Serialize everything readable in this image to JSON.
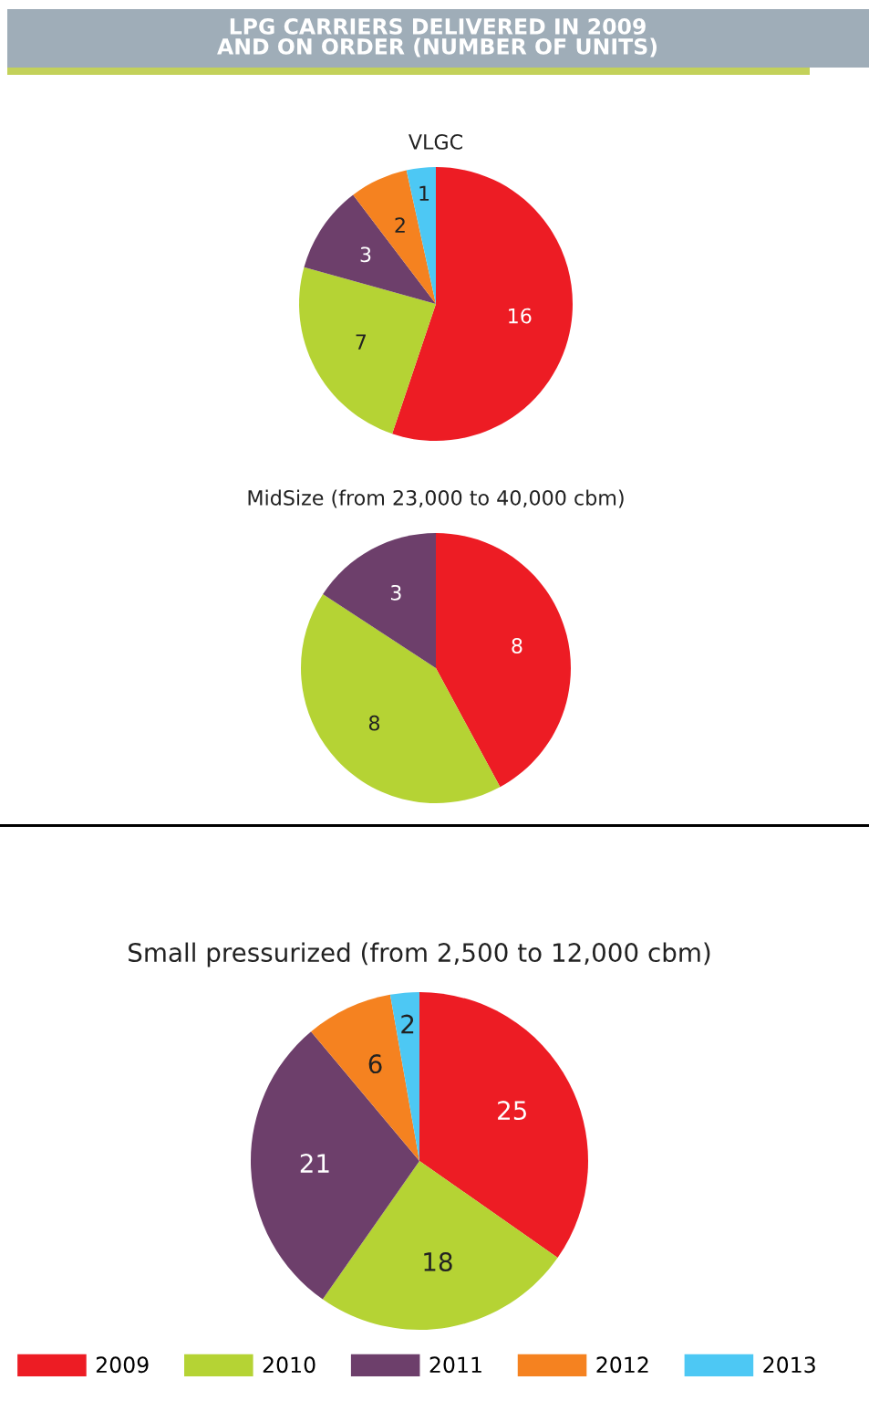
{
  "chart_data": [
    {
      "type": "pie",
      "title": "LPG CARRIERS DELIVERED IN 2009\nAND ON ORDER (NUMBER OF UNITS)",
      "subtitle": "VLGC",
      "categories": [
        "2009",
        "2010",
        "2011",
        "2012",
        "2013"
      ],
      "values": [
        16,
        7,
        3,
        2,
        1
      ],
      "colors": [
        "#ed1c24",
        "#b5d334",
        "#6d3f6b",
        "#f58220",
        "#4dc8f4"
      ],
      "data_labels": true,
      "legend": "bottom"
    },
    {
      "type": "pie",
      "subtitle": "MidSize (from 23,000 to 40,000 cbm)",
      "categories": [
        null,
        null,
        null
      ],
      "values": [
        8,
        8,
        3
      ],
      "colors": [
        "#ed1c24",
        "#b5d334",
        "#6d3f6b"
      ],
      "data_labels": true
    },
    {
      "type": "pie",
      "subtitle": "Small pressurized (from 2,500 to 12,000 cbm)",
      "categories": [
        null,
        null,
        null,
        null,
        null
      ],
      "values": [
        25,
        18,
        21,
        6,
        2
      ],
      "colors": [
        "#ed1c24",
        "#b5d334",
        "#6d3f6b",
        "#f58220",
        "#4dc8f4"
      ],
      "data_labels": true
    }
  ]
}
